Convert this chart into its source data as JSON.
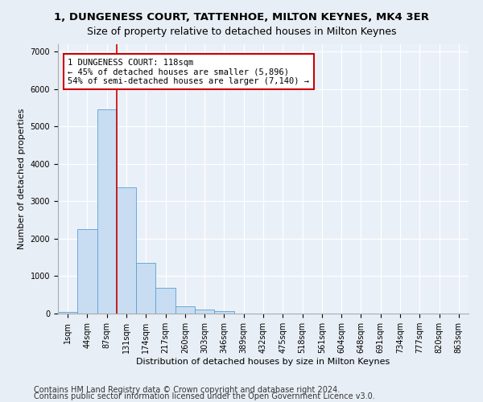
{
  "title": "1, DUNGENESS COURT, TATTENHOE, MILTON KEYNES, MK4 3ER",
  "subtitle": "Size of property relative to detached houses in Milton Keynes",
  "xlabel": "Distribution of detached houses by size in Milton Keynes",
  "ylabel": "Number of detached properties",
  "footer1": "Contains HM Land Registry data © Crown copyright and database right 2024.",
  "footer2": "Contains public sector information licensed under the Open Government Licence v3.0.",
  "bar_labels": [
    "1sqm",
    "44sqm",
    "87sqm",
    "131sqm",
    "174sqm",
    "217sqm",
    "260sqm",
    "303sqm",
    "346sqm",
    "389sqm",
    "432sqm",
    "475sqm",
    "518sqm",
    "561sqm",
    "604sqm",
    "648sqm",
    "691sqm",
    "734sqm",
    "777sqm",
    "820sqm",
    "863sqm"
  ],
  "bar_values": [
    50,
    2250,
    5450,
    3380,
    1350,
    680,
    185,
    110,
    75,
    0,
    0,
    0,
    0,
    0,
    0,
    0,
    0,
    0,
    0,
    0,
    0
  ],
  "bar_color": "#c8ddf2",
  "bar_edge_color": "#5a9fd4",
  "vline_x": 2.5,
  "vline_color": "#cc0000",
  "annotation_text": "1 DUNGENESS COURT: 118sqm\n← 45% of detached houses are smaller (5,896)\n54% of semi-detached houses are larger (7,140) →",
  "annotation_box_color": "#ffffff",
  "annotation_box_edge": "#cc0000",
  "ylim": [
    0,
    7200
  ],
  "yticks": [
    0,
    1000,
    2000,
    3000,
    4000,
    5000,
    6000,
    7000
  ],
  "bg_color": "#e8eef5",
  "plot_bg_color": "#eaf0f8",
  "title_fontsize": 9.5,
  "axis_fontsize": 8,
  "tick_fontsize": 7,
  "footer_fontsize": 7
}
